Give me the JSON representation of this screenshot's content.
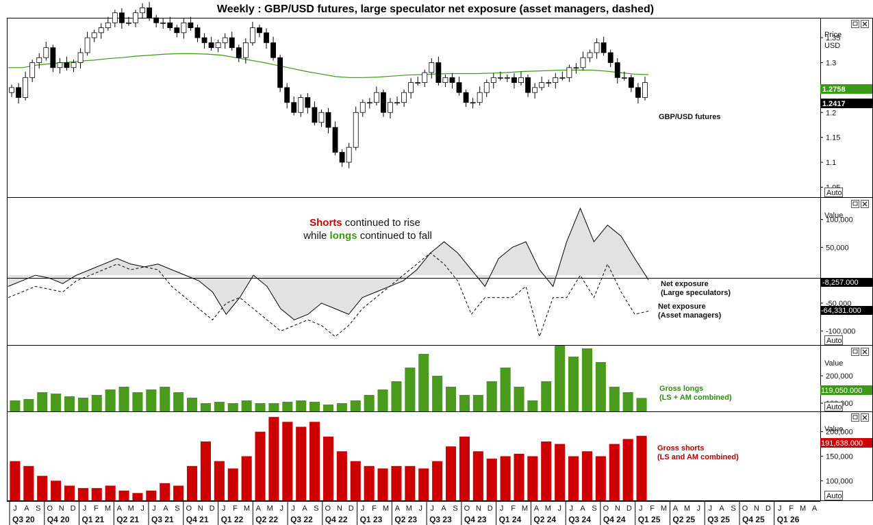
{
  "title": "Weekly : GBP/USD futures, large speculator net exposure (asset managers, dashed)",
  "panel_buttons": {
    "auto": "Auto"
  },
  "price_panel": {
    "axis_title": "Price",
    "axis_unit": "USD",
    "ticks": [
      "1.35",
      "1.3",
      "1.25",
      "1.2",
      "1.15",
      "1.1",
      "1.05"
    ],
    "series_label": "GBP/USD futures",
    "price_value": "1.2417",
    "ma_value": "1.2758",
    "ma_color": "#3a9a16",
    "price_color": "#000000"
  },
  "net_panel": {
    "axis_title": "Value",
    "ticks": [
      "100,000",
      "50,000",
      "-50,000",
      "-100,000"
    ],
    "annotation_line1_highlight": "Shorts",
    "annotation_line1_rest": " continued to rise",
    "annotation_line2_pre": "while ",
    "annotation_line2_highlight": "longs",
    "annotation_line2_rest": " continued to fall",
    "shorts_color": "#cc0000",
    "longs_color": "#3a9a16",
    "ls_label_1": "Net exposure",
    "ls_label_2": "(Large speculators)",
    "am_label_1": "Net exposure",
    "am_label_2": "(Asset managers)",
    "ls_value": "-8,257.000",
    "am_value": "-64,331.000"
  },
  "longs_panel": {
    "axis_title": "Value",
    "ticks": [
      "200,000",
      "100,000"
    ],
    "label_1": "Gross longs",
    "label_2": "(LS + AM combined)",
    "value": "119,050.000",
    "color": "#4a9a1e"
  },
  "shorts_panel": {
    "axis_title": "Value",
    "ticks": [
      "200,000",
      "150,000",
      "100,000"
    ],
    "label_1": "Gross shorts",
    "label_2": "(LS and AM combined)",
    "value": "191,638.000",
    "color": "#cc0000"
  },
  "x_axis": {
    "months": [
      "J",
      "A",
      "S",
      "O",
      "N",
      "D",
      "J",
      "F",
      "M",
      "A",
      "M",
      "J",
      "J",
      "A",
      "S",
      "O",
      "N",
      "D",
      "J",
      "F",
      "M",
      "A",
      "M",
      "J",
      "J",
      "A",
      "S",
      "O",
      "N",
      "D",
      "J",
      "F",
      "M",
      "A",
      "M",
      "J",
      "J",
      "A",
      "S",
      "O",
      "N",
      "D",
      "J",
      "F",
      "M",
      "A",
      "M",
      "J",
      "J",
      "A",
      "S",
      "O",
      "N",
      "D",
      "J",
      "F",
      "M",
      "A",
      "M",
      "J",
      "J",
      "A",
      "S",
      "O",
      "N",
      "D",
      "J",
      "F",
      "M",
      "A"
    ],
    "quarters": [
      "Q3 20",
      "Q4 20",
      "Q1 21",
      "Q2 21",
      "Q3 21",
      "Q4 21",
      "Q1 22",
      "Q2 22",
      "Q3 22",
      "Q4 22",
      "Q1 23",
      "Q2 23",
      "Q3 23",
      "Q4 23",
      "Q1 24",
      "Q2 24",
      "Q3 24",
      "Q4 24",
      "Q1 25",
      "Q2 25",
      "Q3 25",
      "Q4 25",
      "Q1 26"
    ]
  },
  "chart_data": [
    {
      "type": "candlestick",
      "title": "GBP/USD futures",
      "ylabel": "Price USD",
      "ylim": [
        1.03,
        1.39
      ],
      "close": [
        1.25,
        1.23,
        1.27,
        1.3,
        1.31,
        1.33,
        1.29,
        1.3,
        1.29,
        1.3,
        1.32,
        1.35,
        1.36,
        1.37,
        1.38,
        1.4,
        1.38,
        1.38,
        1.4,
        1.41,
        1.39,
        1.38,
        1.38,
        1.37,
        1.36,
        1.38,
        1.37,
        1.35,
        1.34,
        1.33,
        1.34,
        1.35,
        1.33,
        1.31,
        1.34,
        1.37,
        1.36,
        1.34,
        1.31,
        1.25,
        1.22,
        1.2,
        1.23,
        1.21,
        1.18,
        1.2,
        1.17,
        1.12,
        1.1,
        1.13,
        1.2,
        1.22,
        1.22,
        1.24,
        1.2,
        1.22,
        1.22,
        1.24,
        1.26,
        1.26,
        1.28,
        1.3,
        1.26,
        1.27,
        1.26,
        1.24,
        1.22,
        1.22,
        1.24,
        1.26,
        1.27,
        1.27,
        1.27,
        1.26,
        1.27,
        1.24,
        1.25,
        1.26,
        1.26,
        1.27,
        1.27,
        1.29,
        1.29,
        1.31,
        1.32,
        1.34,
        1.32,
        1.3,
        1.27,
        1.27,
        1.25,
        1.23,
        1.26
      ],
      "ma": [
        1.29,
        1.29,
        1.295,
        1.298,
        1.3,
        1.303,
        1.305,
        1.308,
        1.31,
        1.313,
        1.315,
        1.317,
        1.318,
        1.318,
        1.317,
        1.315,
        1.31,
        1.305,
        1.3,
        1.294,
        1.288,
        1.282,
        1.277,
        1.272,
        1.27,
        1.27,
        1.271,
        1.273,
        1.275,
        1.276,
        1.277,
        1.278,
        1.278,
        1.278,
        1.279,
        1.28,
        1.282,
        1.283,
        1.284,
        1.285,
        1.285,
        1.285,
        1.283,
        1.28,
        1.277,
        1.276
      ],
      "last_price": 1.2417,
      "last_ma": 1.2758
    },
    {
      "type": "line",
      "title": "Net exposure",
      "ylabel": "Value",
      "ylim": [
        -125000,
        140000
      ],
      "series": [
        {
          "name": "Net exposure (Large speculators)",
          "style": "solid",
          "values": [
            -20000,
            -10000,
            0,
            -5000,
            -15000,
            0,
            10000,
            20000,
            30000,
            20000,
            15000,
            20000,
            10000,
            0,
            -10000,
            -30000,
            -70000,
            -40000,
            0,
            -20000,
            -60000,
            -80000,
            -70000,
            -50000,
            -60000,
            -70000,
            -40000,
            -30000,
            -20000,
            -10000,
            10000,
            40000,
            60000,
            40000,
            10000,
            -20000,
            30000,
            50000,
            60000,
            10000,
            -20000,
            60000,
            120000,
            60000,
            90000,
            70000,
            30000,
            -8257
          ]
        },
        {
          "name": "Net exposure (Asset managers)",
          "style": "dashed",
          "values": [
            -40000,
            -30000,
            -20000,
            -25000,
            -30000,
            -10000,
            0,
            10000,
            20000,
            10000,
            15000,
            10000,
            -20000,
            -40000,
            -60000,
            -80000,
            -50000,
            -40000,
            -60000,
            -80000,
            -100000,
            -90000,
            -80000,
            -90000,
            -110000,
            -90000,
            -60000,
            -40000,
            -20000,
            0,
            20000,
            40000,
            20000,
            -10000,
            -70000,
            -40000,
            -40000,
            -40000,
            -20000,
            -110000,
            -40000,
            -40000,
            0,
            -40000,
            20000,
            -30000,
            -70000,
            -64331
          ]
        }
      ],
      "last_values": {
        "large_speculators": -8257,
        "asset_managers": -64331
      }
    },
    {
      "type": "bar",
      "title": "Gross longs (LS + AM combined)",
      "ylabel": "Value",
      "ylim": [
        70000,
        310000
      ],
      "values": [
        110000,
        115000,
        140000,
        135000,
        125000,
        120000,
        130000,
        150000,
        160000,
        140000,
        150000,
        160000,
        140000,
        120000,
        100000,
        105000,
        100000,
        110000,
        100000,
        100000,
        105000,
        110000,
        105000,
        95000,
        100000,
        110000,
        130000,
        150000,
        180000,
        230000,
        280000,
        200000,
        160000,
        130000,
        130000,
        180000,
        230000,
        160000,
        110000,
        180000,
        310000,
        270000,
        300000,
        250000,
        160000,
        140000,
        119050
      ],
      "last_value": 119050
    },
    {
      "type": "bar",
      "title": "Gross shorts (LS and AM combined)",
      "ylabel": "Value",
      "ylim": [
        60000,
        240000
      ],
      "values": [
        140000,
        130000,
        110000,
        100000,
        90000,
        85000,
        85000,
        90000,
        80000,
        75000,
        80000,
        95000,
        90000,
        130000,
        180000,
        140000,
        125000,
        150000,
        200000,
        230000,
        220000,
        210000,
        220000,
        190000,
        160000,
        140000,
        130000,
        125000,
        130000,
        130000,
        125000,
        140000,
        170000,
        190000,
        160000,
        145000,
        150000,
        155000,
        150000,
        180000,
        175000,
        150000,
        160000,
        150000,
        175000,
        185000,
        191638
      ],
      "last_value": 191638
    }
  ]
}
